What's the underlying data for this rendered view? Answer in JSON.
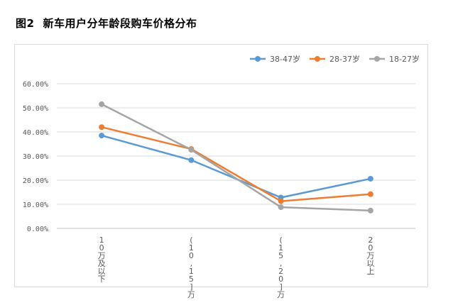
{
  "figure": {
    "number": "图2",
    "caption": "新车用户分年龄段购车价格分布"
  },
  "chart_data": {
    "type": "line",
    "categories": [
      "10万及以下",
      "(10,15]万",
      "(15,20]万",
      "20万以上"
    ],
    "series": [
      {
        "name": "38-47岁",
        "color": "#5b9bd5",
        "values": [
          38.5,
          28.3,
          12.8,
          20.6
        ]
      },
      {
        "name": "28-37岁",
        "color": "#ed7d31",
        "values": [
          42.0,
          32.9,
          11.3,
          14.2
        ]
      },
      {
        "name": "18-27岁",
        "color": "#a5a5a5",
        "values": [
          51.5,
          32.6,
          8.8,
          7.4
        ]
      }
    ],
    "y_ticks": [
      "0.00%",
      "10.00%",
      "20.00%",
      "30.00%",
      "40.00%",
      "50.00%",
      "60.00%"
    ],
    "ylim": [
      0,
      60
    ],
    "y_unit": "%",
    "grid": true,
    "legend": "top-right"
  }
}
